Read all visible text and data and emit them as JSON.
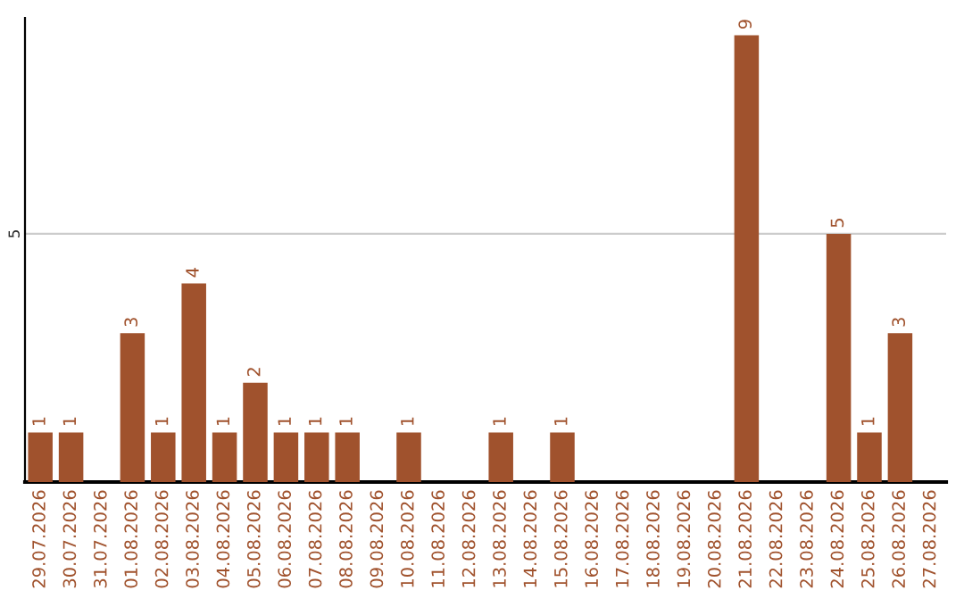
{
  "chart_data": {
    "type": "bar",
    "categories": [
      "29.07.2026",
      "30.07.2026",
      "31.07.2026",
      "01.08.2026",
      "02.08.2026",
      "03.08.2026",
      "04.08.2026",
      "05.08.2026",
      "06.08.2026",
      "07.08.2026",
      "08.08.2026",
      "09.08.2026",
      "10.08.2026",
      "11.08.2026",
      "12.08.2026",
      "13.08.2026",
      "14.08.2026",
      "15.08.2026",
      "16.08.2026",
      "17.08.2026",
      "18.08.2026",
      "19.08.2026",
      "20.08.2026",
      "21.08.2026",
      "22.08.2026",
      "23.08.2026",
      "24.08.2026",
      "25.08.2026",
      "26.08.2026",
      "27.08.2026"
    ],
    "values": [
      1,
      1,
      null,
      3,
      1,
      4,
      1,
      2,
      1,
      1,
      1,
      null,
      1,
      null,
      null,
      1,
      null,
      1,
      null,
      null,
      null,
      null,
      null,
      9,
      null,
      null,
      5,
      1,
      3,
      null
    ],
    "color": "#a0522d",
    "ylim": [
      0,
      9.35
    ],
    "yticks": [
      5
    ],
    "grid": "y",
    "data_labels": true,
    "legend": false
  }
}
